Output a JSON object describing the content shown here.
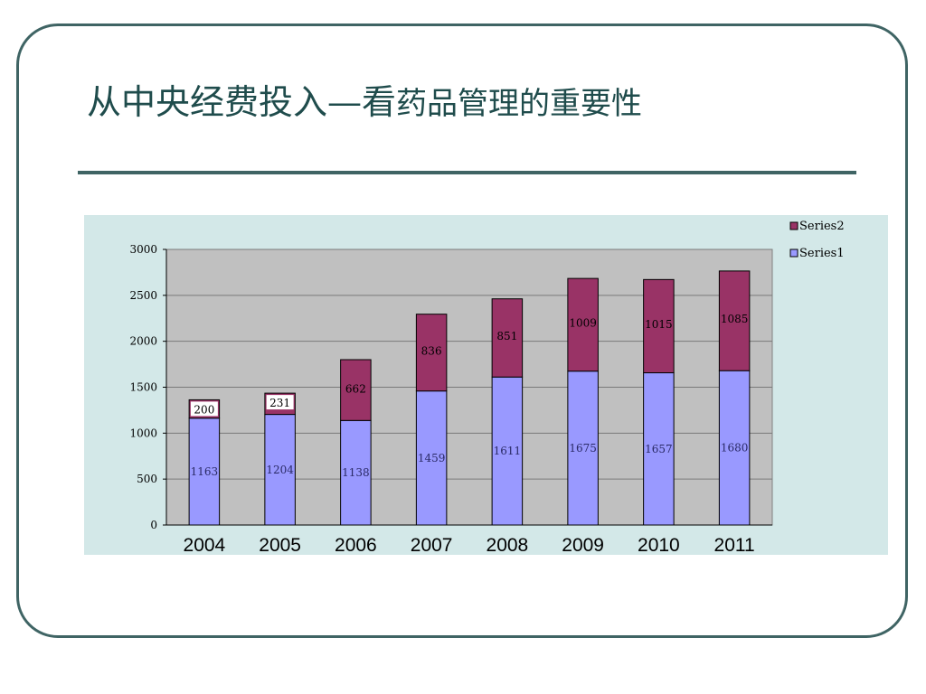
{
  "slide": {
    "title_main": "从中央经费投入—看",
    "title_rest": "药品管理的重要性"
  },
  "colors": {
    "frame": "#3f6464",
    "title": "#1f4c4c",
    "chart_background": "#d3e8e8",
    "plot_background": "#c0c0c0",
    "series1": "#9999ff",
    "series2": "#993366"
  },
  "chart_data": {
    "type": "bar",
    "stacked": true,
    "categories": [
      "2004",
      "2005",
      "2006",
      "2007",
      "2008",
      "2009",
      "2010",
      "2011"
    ],
    "series": [
      {
        "name": "Series1",
        "values": [
          1163,
          1204,
          1138,
          1459,
          1611,
          1675,
          1657,
          1680
        ]
      },
      {
        "name": "Series2",
        "values": [
          200,
          231,
          662,
          836,
          851,
          1009,
          1015,
          1085
        ]
      }
    ],
    "ylim": [
      0,
      3000
    ],
    "yticks": [
      "0",
      "500",
      "1000",
      "1500",
      "2000",
      "2500",
      "3000"
    ],
    "grid": true,
    "legend": "top-right",
    "data_labels": true
  }
}
